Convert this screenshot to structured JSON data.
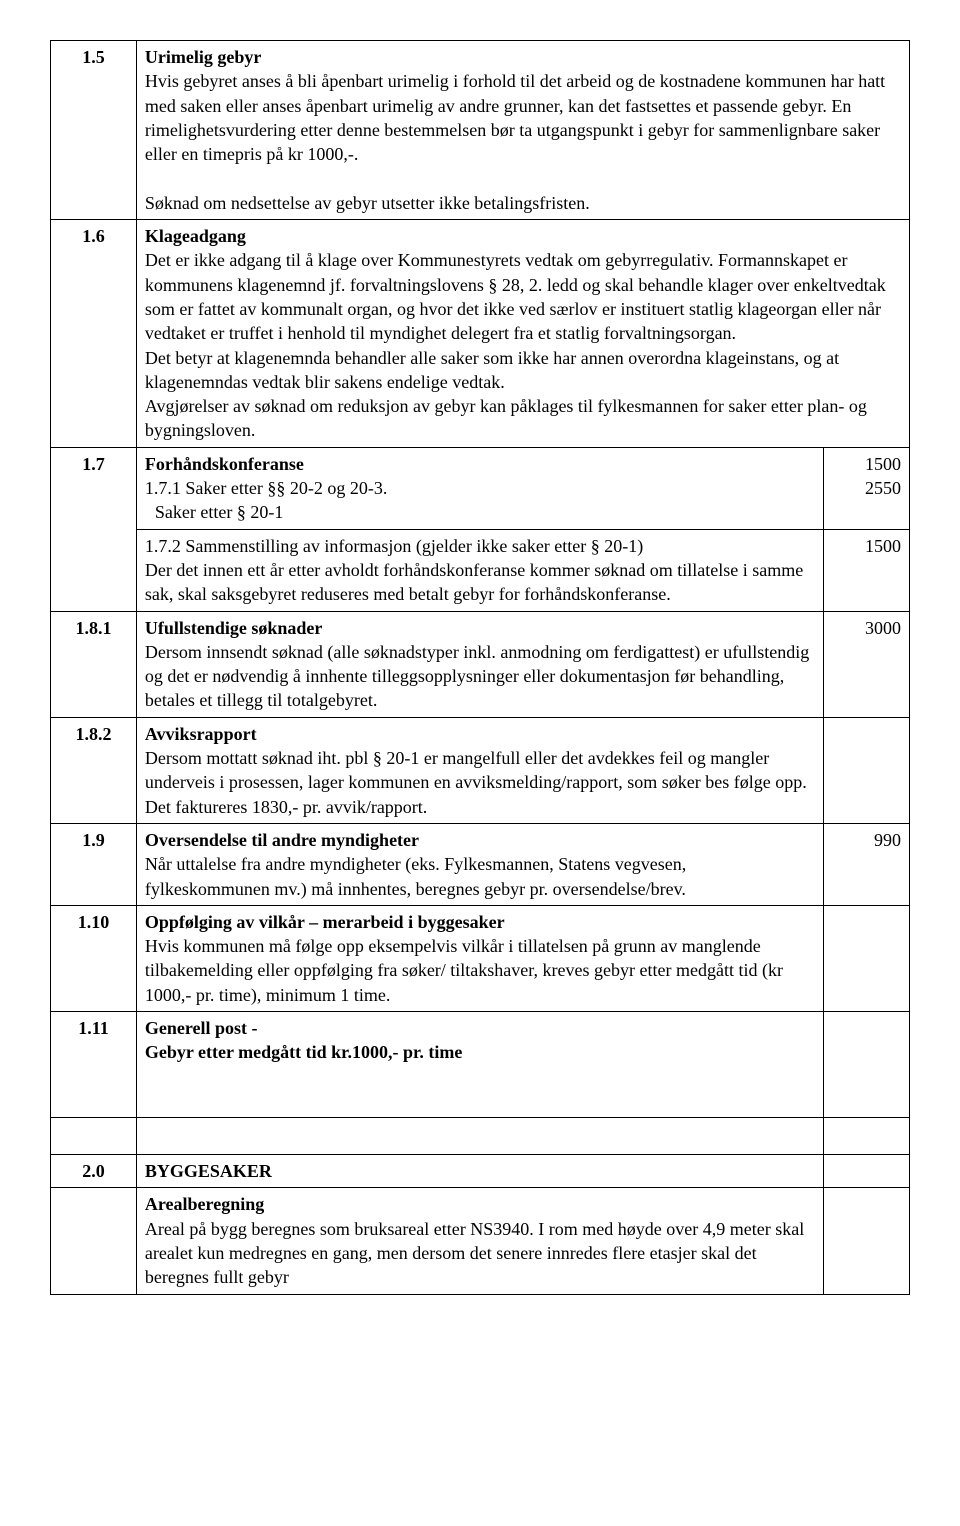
{
  "rows": {
    "r15": {
      "num": "1.5",
      "title": "Urimelig gebyr",
      "p1": "Hvis gebyret anses å bli åpenbart urimelig i forhold til det arbeid og de kostnadene kommunen har hatt med saken eller anses åpenbart urimelig av andre grunner, kan det fastsettes et passende gebyr. En rimelighetsvurdering etter denne bestemmelsen bør ta utgangspunkt i gebyr for sammenlignbare saker eller en timepris på kr 1000,-.",
      "p2": "Søknad om nedsettelse av gebyr utsetter ikke betalingsfristen."
    },
    "r16": {
      "num": "1.6",
      "title": "Klageadgang",
      "p1": "Det er ikke adgang til å klage over Kommunestyrets vedtak om gebyrregulativ. Formannskapet er kommunens klagenemnd jf. forvaltningslovens § 28, 2. ledd og skal behandle klager over enkeltvedtak som er fattet av kommunalt organ, og hvor det ikke ved særlov er instituert statlig klageorgan eller når vedtaket er truffet i henhold til myndighet delegert fra et statlig forvaltningsorgan.",
      "p2": "Det betyr at klagenemnda behandler alle saker som ikke har annen overordna klageinstans, og at klagenemndas vedtak blir sakens endelige vedtak.",
      "p3": "Avgjørelser av søknad om reduksjon av gebyr kan påklages til fylkesmannen for saker etter plan- og bygningsloven."
    },
    "r17": {
      "num": "1.7",
      "title": "Forhåndskonferanse",
      "l1": "1.7.1 Saker etter §§ 20-2 og 20-3.",
      "v1": "1500",
      "l2": "Saker etter § 20-1",
      "v2": "2550",
      "l3": "1.7.2 Sammenstilling av informasjon (gjelder ikke saker etter § 20-1)",
      "v3": "1500",
      "p1": "Der det innen ett år etter avholdt forhåndskonferanse kommer søknad om tillatelse i samme sak, skal saksgebyret reduseres med betalt gebyr for forhåndskonferanse."
    },
    "r181": {
      "num": "1.8.1",
      "title": "Ufullstendige søknader",
      "p1": "Dersom innsendt søknad (alle søknadstyper inkl. anmodning om ferdigattest) er ufullstendig og det er nødvendig å innhente tilleggsopplysninger eller dokumentasjon før behandling, betales et tillegg til totalgebyret.",
      "v1": "3000"
    },
    "r182": {
      "num": "1.8.2",
      "title": "Avviksrapport",
      "p1": "Dersom mottatt søknad iht. pbl § 20-1 er mangelfull eller det avdekkes feil og mangler underveis i prosessen, lager kommunen en avviksmelding/rapport, som søker bes følge opp. Det faktureres 1830,- pr. avvik/rapport."
    },
    "r19": {
      "num": "1.9",
      "title": "Oversendelse til andre myndigheter",
      "p1": "Når uttalelse fra andre myndigheter (eks. Fylkesmannen, Statens vegvesen, fylkeskommunen mv.) må innhentes, beregnes gebyr pr. oversendelse/brev.",
      "v1": "990"
    },
    "r110": {
      "num": "1.10",
      "title": "Oppfølging av vilkår – merarbeid i byggesaker",
      "p1": "Hvis kommunen må følge opp eksempelvis vilkår i tillatelsen på grunn av manglende tilbakemelding eller oppfølging fra søker/ tiltakshaver, kreves gebyr etter medgått tid (kr  1000,- pr. time), minimum 1 time."
    },
    "r111": {
      "num": "1.11",
      "title1": "Generell post -",
      "title2": "Gebyr etter medgått tid kr.1000,- pr. time"
    },
    "r20": {
      "num": "2.0",
      "title": "BYGGESAKER"
    },
    "rAreal": {
      "title": "Arealberegning",
      "p1": "Areal på bygg beregnes som bruksareal etter NS3940. I rom med høyde over 4,9 meter skal arealet kun medregnes en gang, men dersom det senere innredes flere etasjer skal det beregnes fullt gebyr"
    }
  }
}
